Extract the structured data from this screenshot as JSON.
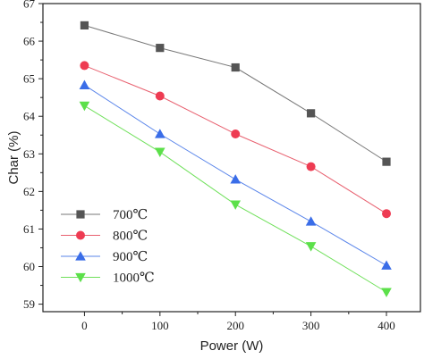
{
  "chart_data": {
    "type": "line",
    "title": "",
    "xlabel": "Power (W)",
    "ylabel": "Char (%)",
    "x": [
      0,
      100,
      200,
      300,
      400
    ],
    "xticks": [
      0,
      100,
      200,
      300,
      400
    ],
    "yticks": [
      59,
      60,
      61,
      62,
      63,
      64,
      65,
      66,
      67
    ],
    "xlim": [
      -55,
      445
    ],
    "ylim": [
      58.8,
      67
    ],
    "grid": false,
    "legend_position": "bottom-left",
    "series": [
      {
        "name": "700℃",
        "marker": "square",
        "color": "#555555",
        "line_color": "#777777",
        "values": [
          66.42,
          65.82,
          65.3,
          64.08,
          62.79
        ]
      },
      {
        "name": "800℃",
        "marker": "circle",
        "color": "#ee3b52",
        "line_color": "#e8606f",
        "values": [
          65.35,
          64.54,
          63.53,
          62.66,
          61.41
        ]
      },
      {
        "name": "900℃",
        "marker": "triangle-up",
        "color": "#3a6de8",
        "line_color": "#5a85ea",
        "values": [
          64.83,
          63.53,
          62.32,
          61.2,
          60.03
        ]
      },
      {
        "name": "1000℃",
        "marker": "triangle-down",
        "color": "#5ce04a",
        "line_color": "#6fe05a",
        "values": [
          64.28,
          63.05,
          61.65,
          60.54,
          59.32
        ]
      }
    ]
  }
}
